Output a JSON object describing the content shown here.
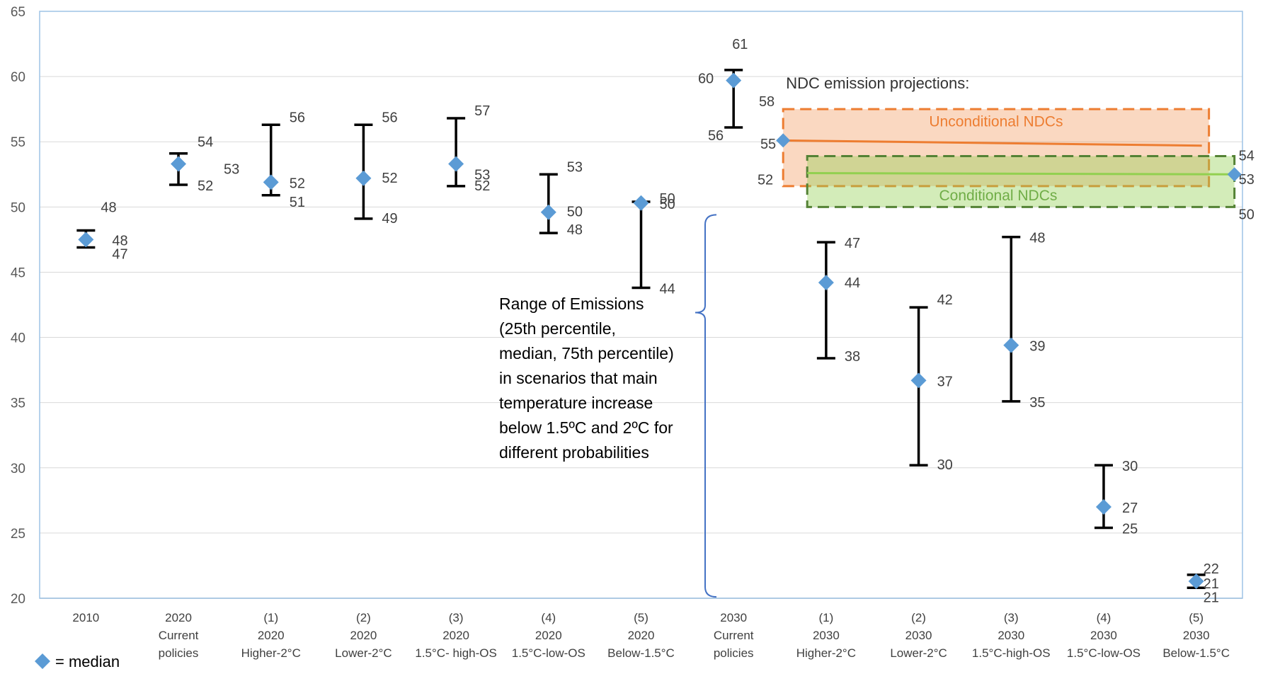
{
  "chart_data": {
    "type": "scatter",
    "title": "",
    "xlabel": "",
    "ylabel": "",
    "ylim": [
      20,
      65
    ],
    "yticks": [
      20,
      25,
      30,
      35,
      40,
      45,
      50,
      55,
      60,
      65
    ],
    "grid": true,
    "categories": [
      [
        "2010"
      ],
      [
        "2020",
        "Current",
        "policies"
      ],
      [
        "(1)",
        "2020",
        "Higher-2°C"
      ],
      [
        "(2)",
        "2020",
        "Lower-2°C"
      ],
      [
        "(3)",
        "2020",
        "1.5°C- high-OS"
      ],
      [
        "(4)",
        "2020",
        "1.5°C-low-OS"
      ],
      [
        "(5)",
        "2020",
        "Below-1.5°C"
      ],
      [
        "2030",
        "Current",
        "policies"
      ],
      [
        "(1)",
        "2030",
        "Higher-2°C"
      ],
      [
        "(2)",
        "2030",
        "Lower-2°C"
      ],
      [
        "(3)",
        "2030",
        "1.5°C-high-OS"
      ],
      [
        "(4)",
        "2030",
        "1.5°C-low-OS"
      ],
      [
        "(5)",
        "2030",
        "Below-1.5°C"
      ]
    ],
    "median": [
      47.5,
      53.3,
      51.9,
      52.2,
      53.3,
      49.6,
      50.3,
      59.7,
      44.2,
      36.7,
      39.4,
      27.0,
      21.3
    ],
    "high": [
      48.2,
      54.1,
      56.3,
      56.3,
      56.8,
      52.5,
      50.4,
      60.5,
      47.3,
      42.3,
      47.7,
      30.2,
      21.8
    ],
    "low": [
      46.9,
      51.7,
      50.9,
      49.1,
      51.6,
      48.0,
      43.8,
      56.1,
      38.4,
      30.2,
      35.1,
      25.4,
      20.8
    ],
    "labels": [
      [
        "48",
        "48",
        "47"
      ],
      [
        "54",
        "53",
        "52"
      ],
      [
        "56",
        "52",
        "51"
      ],
      [
        "56",
        "52",
        "49"
      ],
      [
        "57",
        "53",
        "52"
      ],
      [
        "53",
        "50",
        "48"
      ],
      [
        "50",
        "50",
        "44"
      ],
      [
        "61",
        "60",
        "56"
      ],
      [
        "47",
        "44",
        "38"
      ],
      [
        "42",
        "37",
        "30"
      ],
      [
        "48",
        "39",
        "35"
      ],
      [
        "30",
        "27",
        "25"
      ],
      [
        "22",
        "21",
        "21"
      ]
    ],
    "ndc": {
      "title": "NDC emission projections:",
      "unconditional": {
        "name": "Unconditional NDCs",
        "start": 55.1,
        "end": 54.7,
        "box": [
          51.6,
          57.5
        ],
        "labels": [
          "58",
          "55",
          "52"
        ],
        "color": "#ed7d31"
      },
      "conditional": {
        "name": "Conditional NDCs",
        "start": 52.6,
        "end": 52.5,
        "box": [
          50.0,
          53.9
        ],
        "labels": [
          "54",
          "53",
          "50"
        ],
        "color": "#92d050",
        "border": "#548235"
      }
    },
    "annotation": [
      "Range of Emissions",
      "(25th percentile,",
      "median, 75th percentile)",
      "in scenarios that main",
      "temperature increase",
      "below 1.5ºC and 2ºC for",
      "different probabilities"
    ],
    "legend": "= median",
    "colors": {
      "marker": "#5b9bd5",
      "bracket": "#4472c4",
      "axis_frame": "#9dc3e6",
      "grid": "#d9d9d9"
    }
  }
}
